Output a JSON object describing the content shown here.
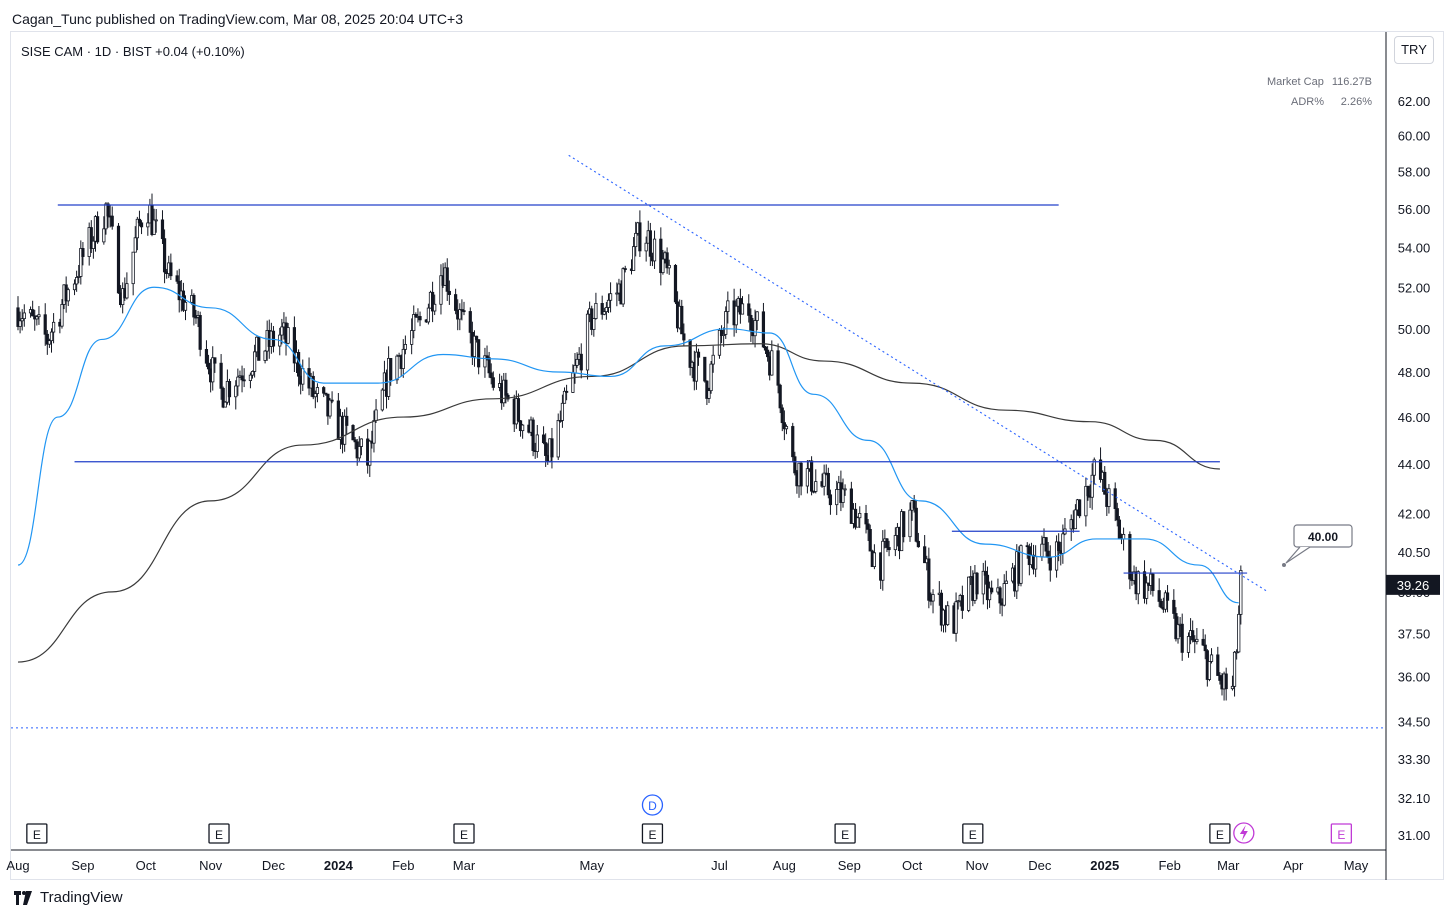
{
  "header": {
    "published_by": "Cagan_Tunc published on TradingView.com, Mar 08, 2025 20:04 UTC+3",
    "symbol_line": "SISE CAM · 1D · BIST  +0.04 (+0.10%)"
  },
  "stats": {
    "market_cap_label": "Market Cap",
    "market_cap_value": "116.27B",
    "adr_label": "ADR%",
    "adr_value": "2.26%"
  },
  "currency": "TRY",
  "brand": "TradingView",
  "colors": {
    "candle": "#131722",
    "ema_short": "#2196f3",
    "ma_long": "#3a3a3a",
    "level_line": "#2340c9",
    "trendline": "#2a62ff"
  },
  "chart_data": {
    "type": "line",
    "title": "",
    "xlabel": "",
    "ylabel": "",
    "ylim": [
      30.5,
      66
    ],
    "y_scale": "log",
    "y_ticks": [
      "62.00",
      "60.00",
      "58.00",
      "56.00",
      "54.00",
      "52.00",
      "50.00",
      "48.00",
      "46.00",
      "44.00",
      "42.00",
      "40.50",
      "39.00",
      "37.50",
      "36.00",
      "34.50",
      "33.30",
      "32.10",
      "31.00"
    ],
    "x_ticks": [
      {
        "label": "Aug",
        "date": "2023-08-01"
      },
      {
        "label": "Sep",
        "date": "2023-09-01"
      },
      {
        "label": "Oct",
        "date": "2023-10-01"
      },
      {
        "label": "Nov",
        "date": "2023-11-01"
      },
      {
        "label": "Dec",
        "date": "2023-12-01"
      },
      {
        "label": "2024",
        "date": "2024-01-01",
        "bold": true
      },
      {
        "label": "Feb",
        "date": "2024-02-01"
      },
      {
        "label": "Mar",
        "date": "2024-03-01"
      },
      {
        "label": "May",
        "date": "2024-05-01"
      },
      {
        "label": "Jul",
        "date": "2024-07-01"
      },
      {
        "label": "Aug",
        "date": "2024-08-01"
      },
      {
        "label": "Sep",
        "date": "2024-09-01"
      },
      {
        "label": "Oct",
        "date": "2024-10-01"
      },
      {
        "label": "Nov",
        "date": "2024-11-01"
      },
      {
        "label": "Dec",
        "date": "2024-12-01"
      },
      {
        "label": "2025",
        "date": "2025-01-01",
        "bold": true
      },
      {
        "label": "Feb",
        "date": "2025-02-01"
      },
      {
        "label": "Mar",
        "date": "2025-03-01"
      },
      {
        "label": "Apr",
        "date": "2025-04-01"
      },
      {
        "label": "May",
        "date": "2025-05-01"
      }
    ],
    "last_price": 39.26,
    "callout_price": "40.00",
    "close_series": [
      {
        "date": "2023-08-01",
        "close": 51.0
      },
      {
        "date": "2023-08-15",
        "close": 49.5
      },
      {
        "date": "2023-09-01",
        "close": 53.5
      },
      {
        "date": "2023-09-12",
        "close": 56.0
      },
      {
        "date": "2023-09-20",
        "close": 51.5
      },
      {
        "date": "2023-10-01",
        "close": 56.5
      },
      {
        "date": "2023-10-12",
        "close": 52.5
      },
      {
        "date": "2023-10-25",
        "close": 50.5
      },
      {
        "date": "2023-11-05",
        "close": 47.0
      },
      {
        "date": "2023-11-20",
        "close": 48.5
      },
      {
        "date": "2023-12-05",
        "close": 49.8
      },
      {
        "date": "2023-12-20",
        "close": 47.0
      },
      {
        "date": "2024-01-05",
        "close": 45.2
      },
      {
        "date": "2024-01-15",
        "close": 44.1
      },
      {
        "date": "2024-01-25",
        "close": 48.0
      },
      {
        "date": "2024-02-10",
        "close": 50.5
      },
      {
        "date": "2024-02-20",
        "close": 53.0
      },
      {
        "date": "2024-03-01",
        "close": 50.0
      },
      {
        "date": "2024-03-15",
        "close": 47.5
      },
      {
        "date": "2024-04-01",
        "close": 45.5
      },
      {
        "date": "2024-04-10",
        "close": 44.0
      },
      {
        "date": "2024-04-20",
        "close": 47.0
      },
      {
        "date": "2024-05-01",
        "close": 50.5
      },
      {
        "date": "2024-05-15",
        "close": 52.0
      },
      {
        "date": "2024-05-25",
        "close": 55.0
      },
      {
        "date": "2024-06-05",
        "close": 53.0
      },
      {
        "date": "2024-06-15",
        "close": 49.0
      },
      {
        "date": "2024-06-25",
        "close": 47.5
      },
      {
        "date": "2024-07-05",
        "close": 50.5
      },
      {
        "date": "2024-07-15",
        "close": 51.0
      },
      {
        "date": "2024-07-28",
        "close": 48.0
      },
      {
        "date": "2024-08-05",
        "close": 44.0
      },
      {
        "date": "2024-08-20",
        "close": 43.0
      },
      {
        "date": "2024-09-01",
        "close": 42.5
      },
      {
        "date": "2024-09-15",
        "close": 40.0
      },
      {
        "date": "2024-10-01",
        "close": 42.0
      },
      {
        "date": "2024-10-10",
        "close": 39.0
      },
      {
        "date": "2024-10-20",
        "close": 37.8
      },
      {
        "date": "2024-11-01",
        "close": 39.5
      },
      {
        "date": "2024-11-10",
        "close": 38.5
      },
      {
        "date": "2024-11-25",
        "close": 40.5
      },
      {
        "date": "2024-12-10",
        "close": 40.5
      },
      {
        "date": "2024-12-20",
        "close": 42.5
      },
      {
        "date": "2024-12-28",
        "close": 43.8
      },
      {
        "date": "2025-01-05",
        "close": 42.0
      },
      {
        "date": "2025-01-15",
        "close": 39.5
      },
      {
        "date": "2025-01-25",
        "close": 39.0
      },
      {
        "date": "2025-02-05",
        "close": 37.5
      },
      {
        "date": "2025-02-15",
        "close": 37.0
      },
      {
        "date": "2025-02-25",
        "close": 35.8
      },
      {
        "date": "2025-03-03",
        "close": 35.5
      },
      {
        "date": "2025-03-05",
        "close": 37.0
      },
      {
        "date": "2025-03-07",
        "close": 39.26
      }
    ],
    "ema_short": [
      {
        "date": "2023-08-01",
        "value": 40.0
      },
      {
        "date": "2023-08-20",
        "value": 46.0
      },
      {
        "date": "2023-09-10",
        "value": 49.5
      },
      {
        "date": "2023-10-05",
        "value": 52.0
      },
      {
        "date": "2023-11-01",
        "value": 51.0
      },
      {
        "date": "2023-12-01",
        "value": 49.5
      },
      {
        "date": "2023-12-25",
        "value": 47.5
      },
      {
        "date": "2024-01-20",
        "value": 47.5
      },
      {
        "date": "2024-02-20",
        "value": 48.8
      },
      {
        "date": "2024-03-15",
        "value": 48.6
      },
      {
        "date": "2024-04-15",
        "value": 48.0
      },
      {
        "date": "2024-05-10",
        "value": 47.8
      },
      {
        "date": "2024-06-05",
        "value": 49.2
      },
      {
        "date": "2024-07-05",
        "value": 50.0
      },
      {
        "date": "2024-07-25",
        "value": 49.8
      },
      {
        "date": "2024-08-15",
        "value": 47.0
      },
      {
        "date": "2024-09-10",
        "value": 45.0
      },
      {
        "date": "2024-10-05",
        "value": 42.5
      },
      {
        "date": "2024-11-05",
        "value": 40.8
      },
      {
        "date": "2024-12-05",
        "value": 40.3
      },
      {
        "date": "2024-12-28",
        "value": 41.0
      },
      {
        "date": "2025-01-20",
        "value": 41.0
      },
      {
        "date": "2025-02-15",
        "value": 40.0
      },
      {
        "date": "2025-03-06",
        "value": 38.6
      }
    ],
    "ma_long": [
      {
        "date": "2023-08-01",
        "value": 36.5
      },
      {
        "date": "2023-09-15",
        "value": 39.0
      },
      {
        "date": "2023-11-01",
        "value": 42.5
      },
      {
        "date": "2023-12-15",
        "value": 44.8
      },
      {
        "date": "2024-02-01",
        "value": 46.0
      },
      {
        "date": "2024-03-15",
        "value": 46.8
      },
      {
        "date": "2024-05-01",
        "value": 47.8
      },
      {
        "date": "2024-06-15",
        "value": 49.2
      },
      {
        "date": "2024-07-20",
        "value": 49.3
      },
      {
        "date": "2024-08-20",
        "value": 48.5
      },
      {
        "date": "2024-10-01",
        "value": 47.5
      },
      {
        "date": "2024-11-15",
        "value": 46.3
      },
      {
        "date": "2024-12-25",
        "value": 45.8
      },
      {
        "date": "2025-01-25",
        "value": 45.0
      },
      {
        "date": "2025-02-25",
        "value": 43.8
      }
    ],
    "horizontal_levels": [
      {
        "value": 56.2,
        "from": "2023-08-20",
        "to": "2024-12-10"
      },
      {
        "value": 44.1,
        "from": "2023-08-28",
        "to": "2025-02-25"
      },
      {
        "value": 41.3,
        "from": "2024-10-20",
        "to": "2024-12-20"
      },
      {
        "value": 39.7,
        "from": "2025-01-10",
        "to": "2025-03-10"
      }
    ],
    "trendline": {
      "from": {
        "date": "2024-04-20",
        "value": 58.9
      },
      "to": {
        "date": "2025-03-20",
        "value": 39.0
      }
    },
    "support_dotted": 34.3,
    "earnings_markers": [
      "2023-08-10",
      "2023-11-05",
      "2024-03-01",
      "2024-05-30",
      "2024-08-30",
      "2024-10-30",
      "2025-02-25"
    ],
    "dividend_marker": "2024-05-30",
    "future_earnings_marker": "2025-04-24",
    "event_labels": {
      "earnings": "E",
      "dividend": "D"
    }
  }
}
